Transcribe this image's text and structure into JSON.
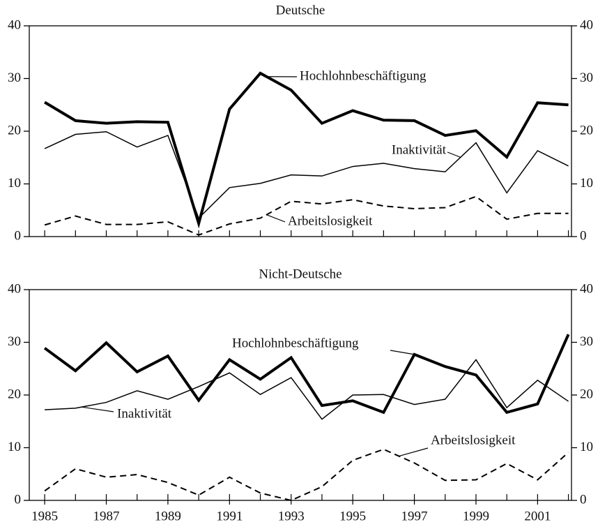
{
  "chart_data": [
    {
      "type": "line",
      "title": "Deutsche",
      "x": [
        1985,
        1986,
        1987,
        1988,
        1989,
        1990,
        1991,
        1992,
        1993,
        1994,
        1995,
        1996,
        1997,
        1998,
        1999,
        2000,
        2001,
        2002
      ],
      "series": [
        {
          "name": "Hochlohnbeschäftigung",
          "color": "#000000",
          "width": 4,
          "dashed": false,
          "values": [
            25.5,
            22,
            21.5,
            21.8,
            21.7,
            2.5,
            24.2,
            31,
            27.8,
            21.5,
            23.9,
            22.1,
            22,
            19.2,
            20.1,
            15.1,
            25.4,
            25
          ]
        },
        {
          "name": "Inaktivität",
          "color": "#000000",
          "width": 1.5,
          "dashed": false,
          "values": [
            16.7,
            19.4,
            19.9,
            17,
            19.2,
            3.5,
            9.3,
            10.1,
            11.7,
            11.5,
            13.3,
            13.9,
            12.9,
            12.3,
            17.8,
            8.3,
            16.3,
            13.4
          ]
        },
        {
          "name": "Arbeitslosigkeit",
          "color": "#000000",
          "width": 2,
          "dashed": true,
          "values": [
            2.2,
            3.9,
            2.3,
            2.3,
            2.8,
            0.3,
            2.4,
            3.5,
            6.7,
            6.2,
            7,
            5.8,
            5.3,
            5.5,
            7.6,
            3.3,
            4.4,
            4.4
          ]
        }
      ],
      "xlim": [
        1984.5,
        2002.1
      ],
      "xminorticks": [
        1985,
        1986,
        1987,
        1988,
        1989,
        1990,
        1991,
        1992,
        1993,
        1994,
        1995,
        1996,
        1997,
        1998,
        1999,
        2000,
        2001,
        2002
      ],
      "ylim": [
        0,
        40
      ],
      "yticks": [
        0,
        10,
        20,
        30,
        40
      ],
      "y2lim": [
        0,
        40
      ],
      "y2ticks": [
        0,
        10,
        20,
        30,
        40
      ]
    },
    {
      "type": "line",
      "title": "Nicht-Deutsche",
      "x": [
        1985,
        1986,
        1987,
        1988,
        1989,
        1990,
        1991,
        1992,
        1993,
        1994,
        1995,
        1996,
        1997,
        1998,
        1999,
        2000,
        2001,
        2002
      ],
      "series": [
        {
          "name": "Hochlohnbeschäftigung",
          "color": "#000000",
          "width": 4,
          "dashed": false,
          "values": [
            28.9,
            24.6,
            29.9,
            24.4,
            27.4,
            19,
            26.7,
            23,
            27.1,
            18,
            18.9,
            16.7,
            27.7,
            25.4,
            23.8,
            16.7,
            18.3,
            31.5
          ]
        },
        {
          "name": "Inaktivität",
          "color": "#000000",
          "width": 1.5,
          "dashed": false,
          "values": [
            17.2,
            17.5,
            18.6,
            20.8,
            19.2,
            21.6,
            24.2,
            20.1,
            23.3,
            15.4,
            20,
            20.1,
            18.2,
            19.2,
            26.7,
            17.6,
            22.8,
            18.8
          ]
        },
        {
          "name": "Arbeitslosigkeit",
          "color": "#000000",
          "width": 2,
          "dashed": true,
          "values": [
            1.8,
            6,
            4.4,
            4.9,
            3.4,
            1,
            4.4,
            1.4,
            0,
            2.6,
            7.6,
            9.7,
            7.1,
            3.8,
            3.9,
            7,
            3.9,
            9.1
          ]
        }
      ],
      "xlim": [
        1984.5,
        2002.1
      ],
      "xticks": [
        1985,
        1987,
        1989,
        1991,
        1993,
        1995,
        1997,
        1999,
        2001
      ],
      "xminorticks": [
        1985,
        1986,
        1987,
        1988,
        1989,
        1990,
        1991,
        1992,
        1993,
        1994,
        1995,
        1996,
        1997,
        1998,
        1999,
        2000,
        2001,
        2002
      ],
      "ylim": [
        0,
        40
      ],
      "yticks": [
        0,
        10,
        20,
        30,
        40
      ],
      "y2lim": [
        0,
        40
      ],
      "y2ticks": [
        0,
        10,
        20,
        30,
        40
      ]
    }
  ]
}
